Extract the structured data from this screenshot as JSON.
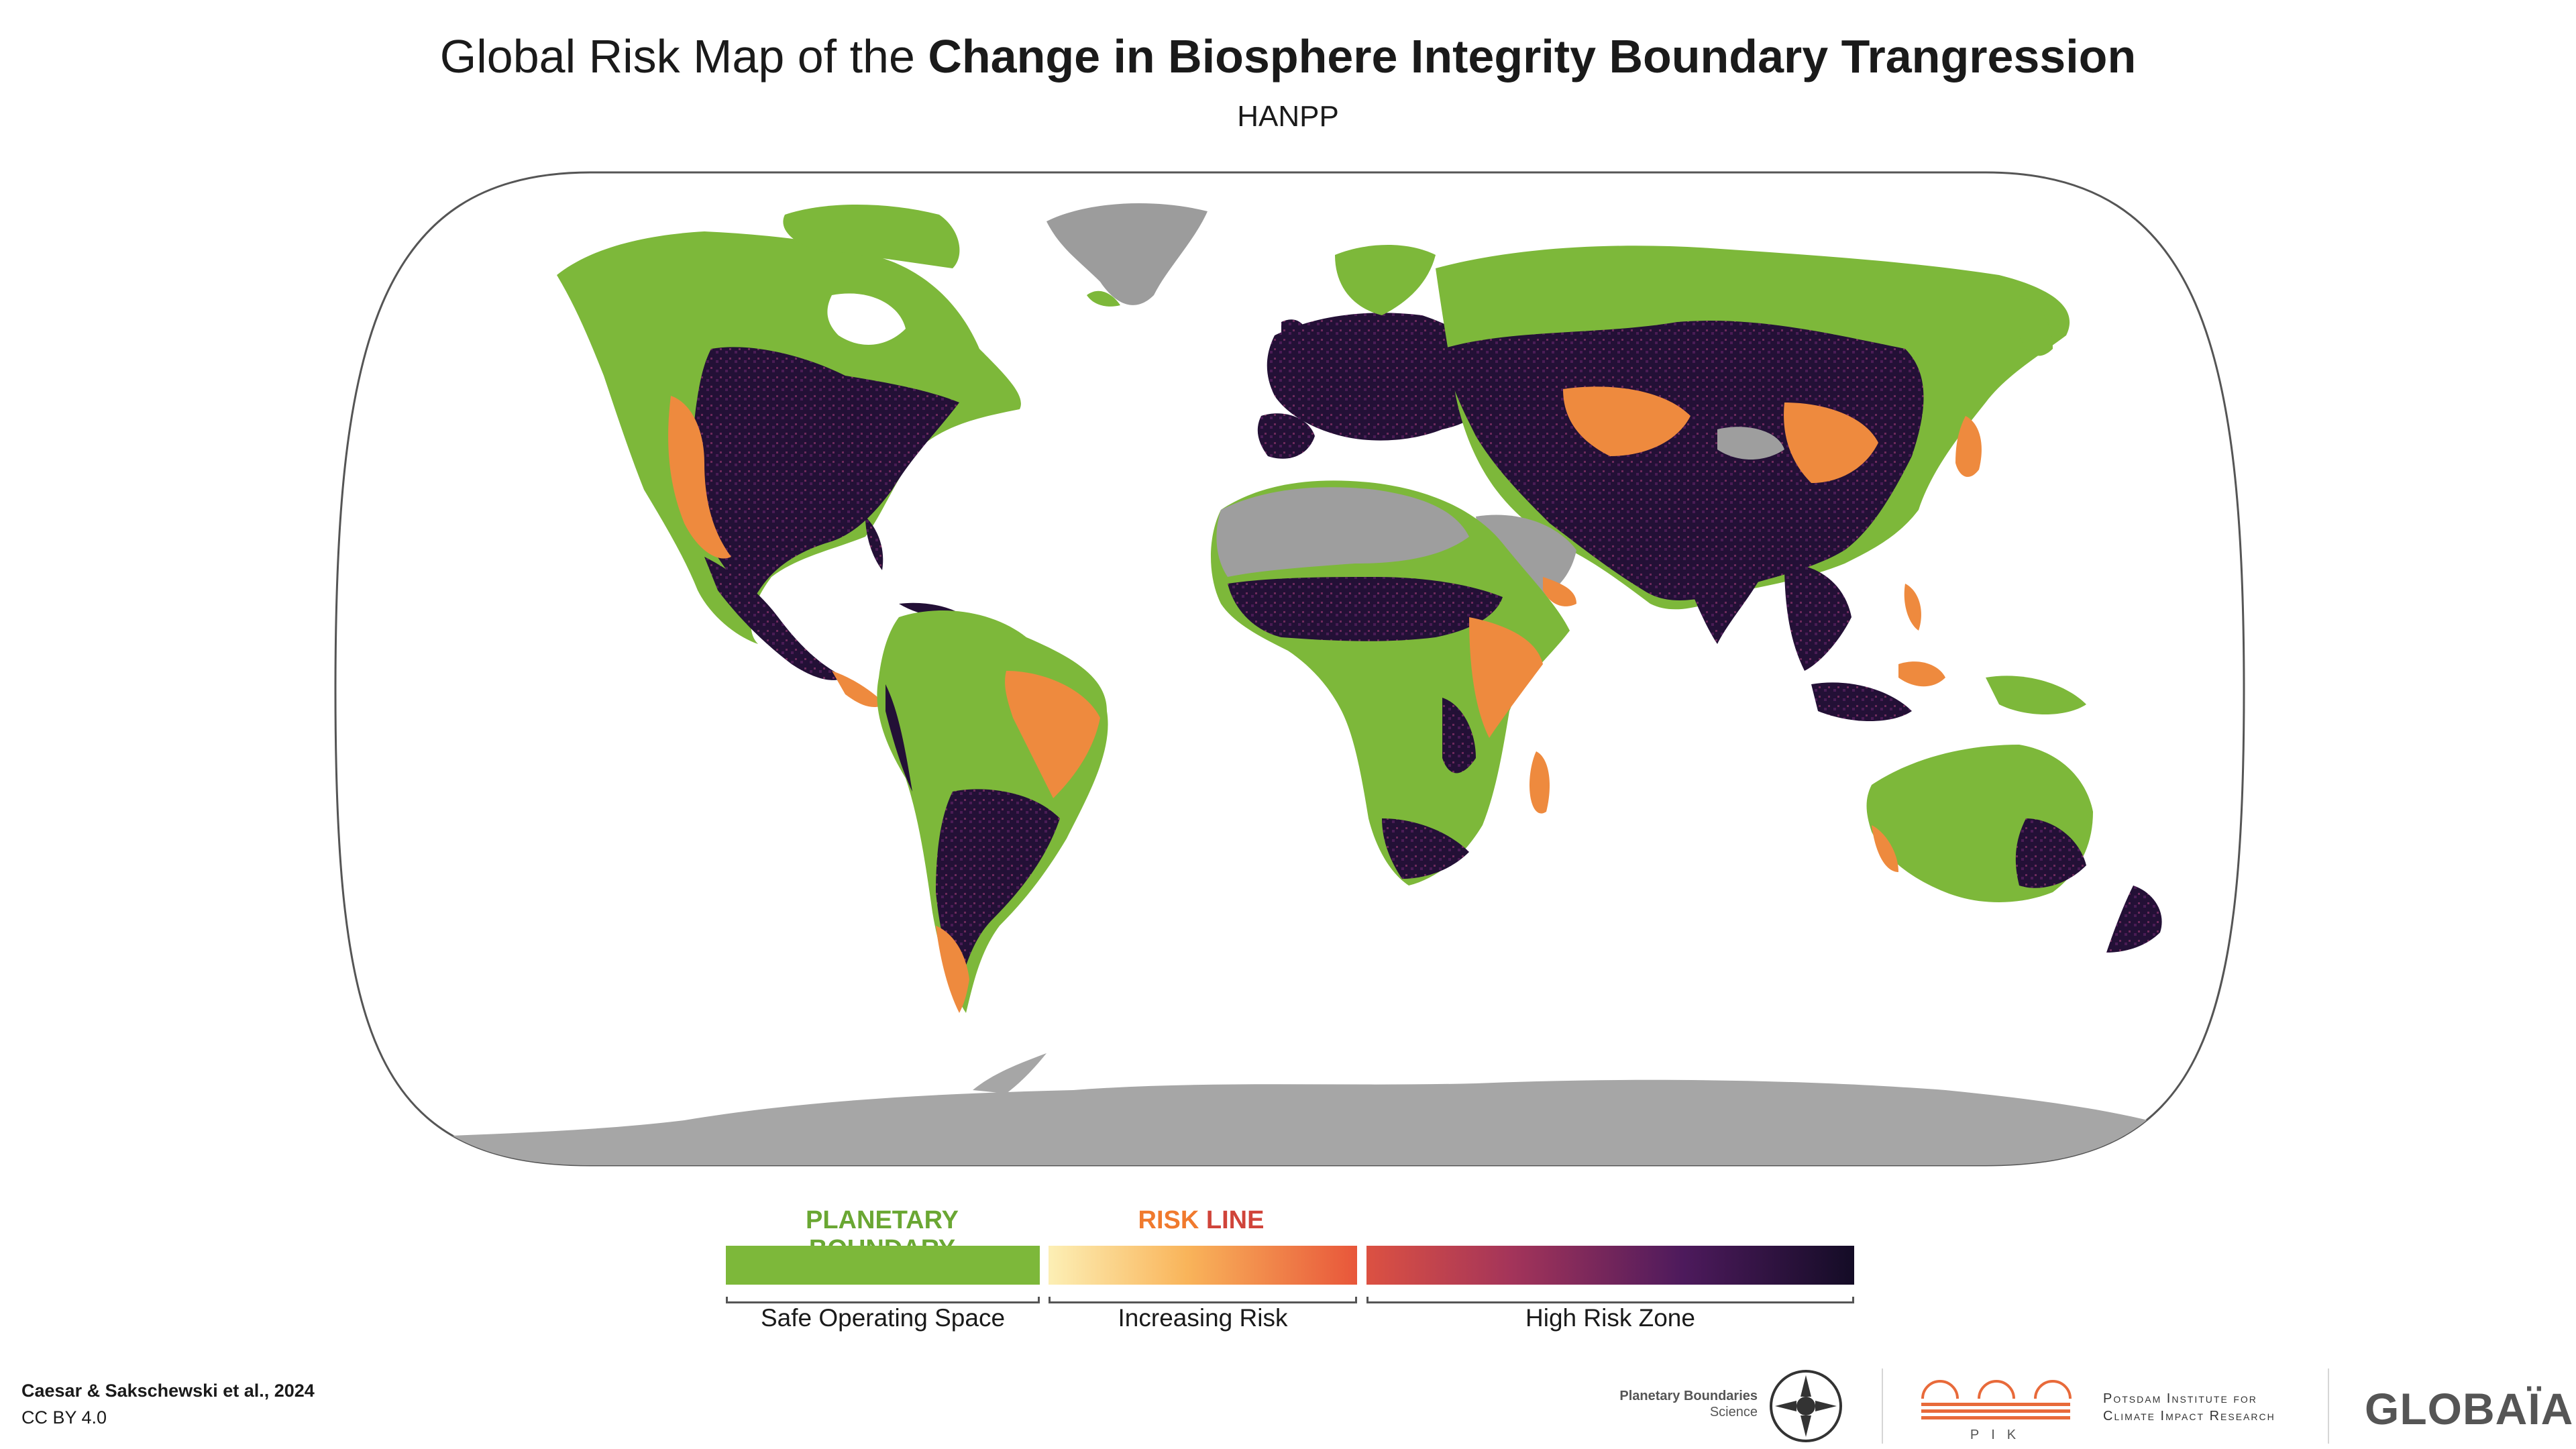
{
  "title": {
    "prefix": "Global Risk Map of the ",
    "bold": "Change in Biosphere Integrity Boundary Trangression",
    "subtitle": "HANPP"
  },
  "legend": {
    "planetary_boundary": "PLANETARY BOUNDARY",
    "risk": "RISK",
    "line": "LINE",
    "safe_label": "Safe Operating Space",
    "increasing_label": "Increasing Risk",
    "high_label": "High Risk Zone",
    "colors": {
      "safe": "#7db83a",
      "increasing": [
        "#fbe9a8",
        "#f7a64c",
        "#e85b3a"
      ],
      "high": [
        "#d94c3f",
        "#8b2a5e",
        "#3a1551",
        "#150d2a"
      ],
      "risk_text": "#f07a2e",
      "line_text": "#d0443a"
    }
  },
  "credit": {
    "authors": "Caesar & Sakschewski et al., 2024",
    "license": "CC BY 4.0"
  },
  "logos": {
    "pbs_line1": "Planetary Boundaries",
    "pbs_line2": "Science",
    "pik_short": "PIK",
    "pik_line1": "Potsdam Institute for",
    "pik_line2": "Climate Impact Research",
    "globaia": "GLOBAÏA"
  },
  "map": {
    "land_colors": {
      "safe": "#7db83a",
      "high_risk": "#231036",
      "increasing": "#ee8a3e",
      "ice_or_desert": "#9e9e9e",
      "outline": "#555555"
    }
  }
}
